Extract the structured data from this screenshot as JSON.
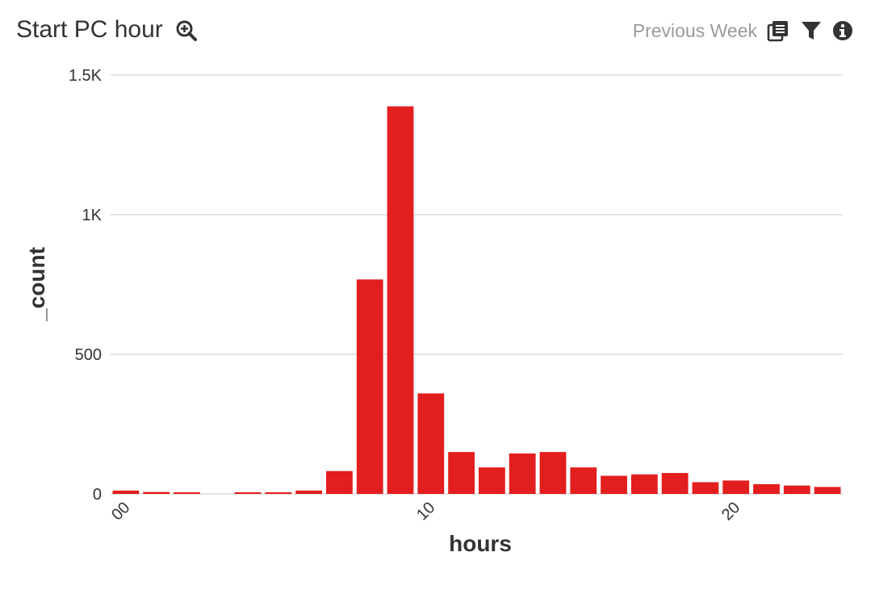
{
  "header": {
    "title": "Start PC hour",
    "period": "Previous Week"
  },
  "colors": {
    "bar": "#e31e1e",
    "grid": "#dcdcdc",
    "text": "#333333",
    "muted": "#9a9a9a"
  },
  "icons": {
    "zoom": "zoom-in-icon",
    "copy": "copy-icon",
    "filter": "filter-icon",
    "info": "info-icon"
  },
  "chart_data": {
    "type": "bar",
    "title": "Start PC hour",
    "xlabel": "hours",
    "ylabel": "_count",
    "categories": [
      0,
      1,
      2,
      3,
      4,
      5,
      6,
      7,
      8,
      9,
      10,
      11,
      12,
      13,
      14,
      15,
      16,
      17,
      18,
      19,
      20,
      21,
      22,
      23
    ],
    "values": [
      12,
      7,
      6,
      0,
      6,
      6,
      12,
      82,
      768,
      1388,
      360,
      150,
      95,
      145,
      150,
      95,
      65,
      70,
      75,
      42,
      48,
      35,
      30,
      25
    ],
    "ylim": [
      0,
      1500
    ],
    "yticks": [
      {
        "value": 0,
        "label": "0"
      },
      {
        "value": 500,
        "label": "500"
      },
      {
        "value": 1000,
        "label": "1K"
      },
      {
        "value": 1500,
        "label": "1.5K"
      }
    ],
    "xticks": [
      {
        "value": 0,
        "label": "00"
      },
      {
        "value": 10,
        "label": "10"
      },
      {
        "value": 20,
        "label": "20"
      }
    ],
    "grid": true,
    "legend": "none"
  }
}
